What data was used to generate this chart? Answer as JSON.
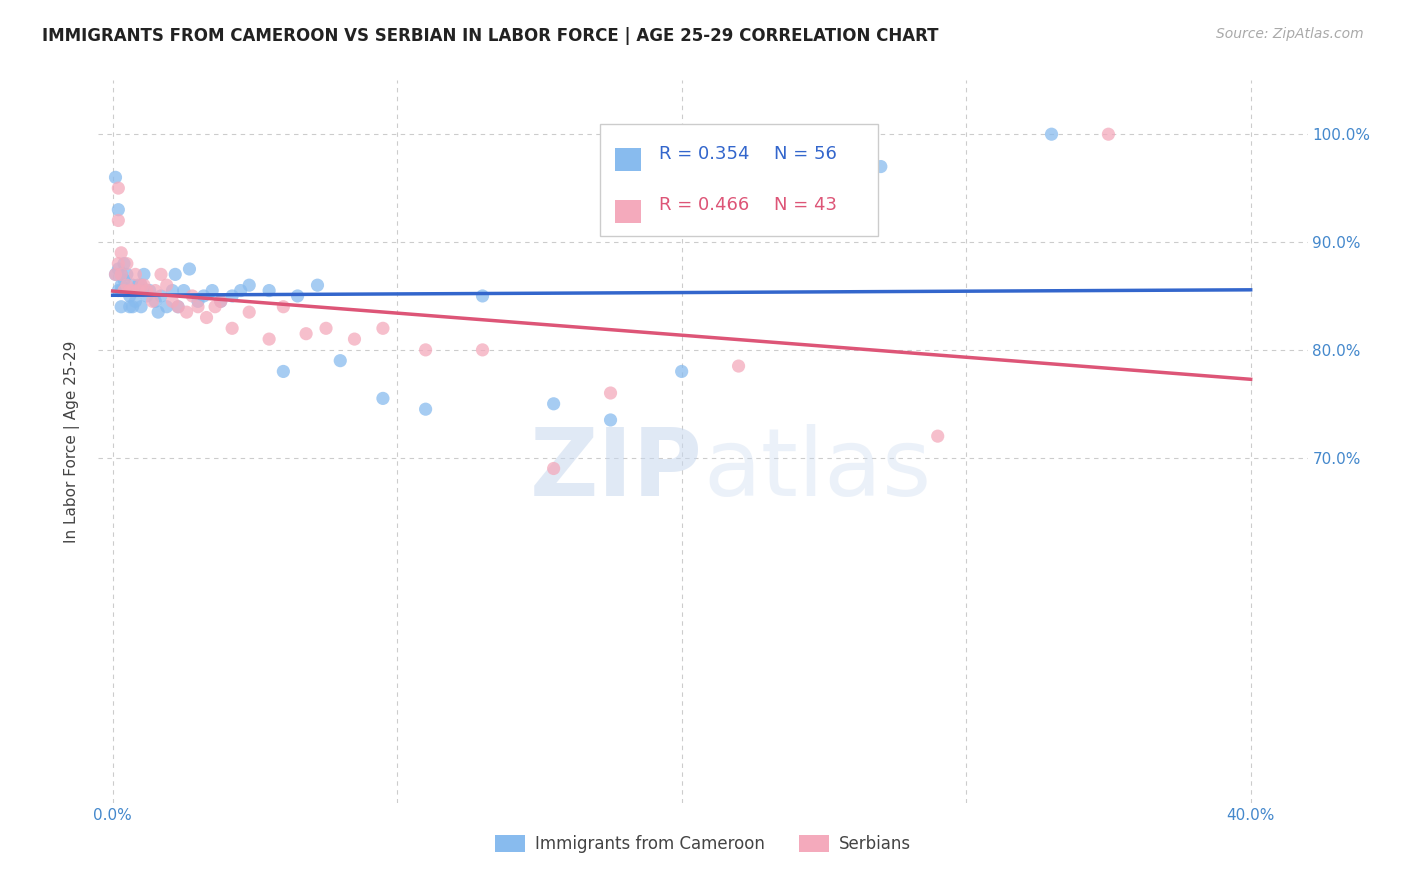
{
  "title": "IMMIGRANTS FROM CAMEROON VS SERBIAN IN LABOR FORCE | AGE 25-29 CORRELATION CHART",
  "source": "Source: ZipAtlas.com",
  "ylabel": "In Labor Force | Age 25-29",
  "xlim": [
    -0.005,
    0.42
  ],
  "ylim": [
    0.38,
    1.05
  ],
  "cameroon_color": "#88BBEE",
  "serbian_color": "#F4AABC",
  "cameroon_line_color": "#3366CC",
  "serbian_line_color": "#DD5577",
  "legend_R_cameroon": "R = 0.354",
  "legend_N_cameroon": "N = 56",
  "legend_R_serbian": "R = 0.466",
  "legend_N_serbian": "N = 43",
  "cameroon_x": [
    0.001,
    0.001,
    0.002,
    0.002,
    0.002,
    0.003,
    0.003,
    0.003,
    0.003,
    0.004,
    0.004,
    0.004,
    0.005,
    0.005,
    0.006,
    0.006,
    0.007,
    0.007,
    0.008,
    0.008,
    0.009,
    0.01,
    0.01,
    0.011,
    0.011,
    0.012,
    0.013,
    0.015,
    0.016,
    0.017,
    0.019,
    0.021,
    0.022,
    0.023,
    0.025,
    0.027,
    0.03,
    0.032,
    0.035,
    0.038,
    0.042,
    0.045,
    0.048,
    0.055,
    0.06,
    0.065,
    0.072,
    0.08,
    0.095,
    0.11,
    0.13,
    0.155,
    0.175,
    0.2,
    0.27,
    0.33
  ],
  "cameroon_y": [
    0.87,
    0.96,
    0.855,
    0.875,
    0.93,
    0.84,
    0.855,
    0.86,
    0.87,
    0.855,
    0.865,
    0.88,
    0.855,
    0.87,
    0.84,
    0.85,
    0.84,
    0.86,
    0.845,
    0.855,
    0.86,
    0.84,
    0.86,
    0.855,
    0.87,
    0.85,
    0.855,
    0.845,
    0.835,
    0.85,
    0.84,
    0.855,
    0.87,
    0.84,
    0.855,
    0.875,
    0.845,
    0.85,
    0.855,
    0.845,
    0.85,
    0.855,
    0.86,
    0.855,
    0.78,
    0.85,
    0.86,
    0.79,
    0.755,
    0.745,
    0.85,
    0.75,
    0.735,
    0.78,
    0.97,
    1.0
  ],
  "serbian_x": [
    0.001,
    0.002,
    0.002,
    0.002,
    0.003,
    0.003,
    0.004,
    0.005,
    0.005,
    0.006,
    0.007,
    0.008,
    0.009,
    0.01,
    0.011,
    0.012,
    0.014,
    0.015,
    0.017,
    0.019,
    0.021,
    0.023,
    0.026,
    0.028,
    0.03,
    0.033,
    0.036,
    0.038,
    0.042,
    0.048,
    0.055,
    0.06,
    0.068,
    0.075,
    0.085,
    0.095,
    0.11,
    0.13,
    0.155,
    0.175,
    0.22,
    0.29,
    0.35
  ],
  "serbian_y": [
    0.87,
    0.88,
    0.92,
    0.95,
    0.87,
    0.89,
    0.855,
    0.86,
    0.88,
    0.855,
    0.855,
    0.87,
    0.855,
    0.86,
    0.86,
    0.855,
    0.845,
    0.855,
    0.87,
    0.86,
    0.845,
    0.84,
    0.835,
    0.85,
    0.84,
    0.83,
    0.84,
    0.845,
    0.82,
    0.835,
    0.81,
    0.84,
    0.815,
    0.82,
    0.81,
    0.82,
    0.8,
    0.8,
    0.69,
    0.76,
    0.785,
    0.72,
    1.0
  ],
  "watermark_zip": "ZIP",
  "watermark_atlas": "atlas",
  "background_color": "#FFFFFF"
}
